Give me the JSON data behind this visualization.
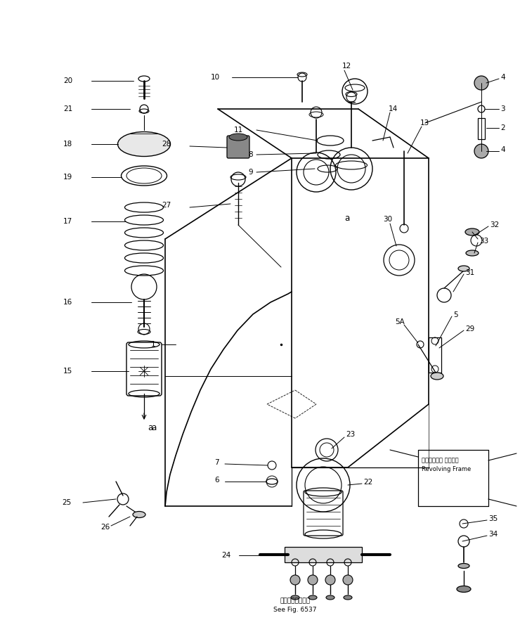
{
  "bg_color": "#ffffff",
  "line_color": "#000000",
  "text_color": "#000000",
  "fig_width": 7.4,
  "fig_height": 8.82,
  "dpi": 100,
  "bottom_text1": "第６５３７図参照",
  "bottom_text2": "See Fig. 6537",
  "revolving_jp": "レボルビング フレーム",
  "revolving_en": "Revolving Frame"
}
